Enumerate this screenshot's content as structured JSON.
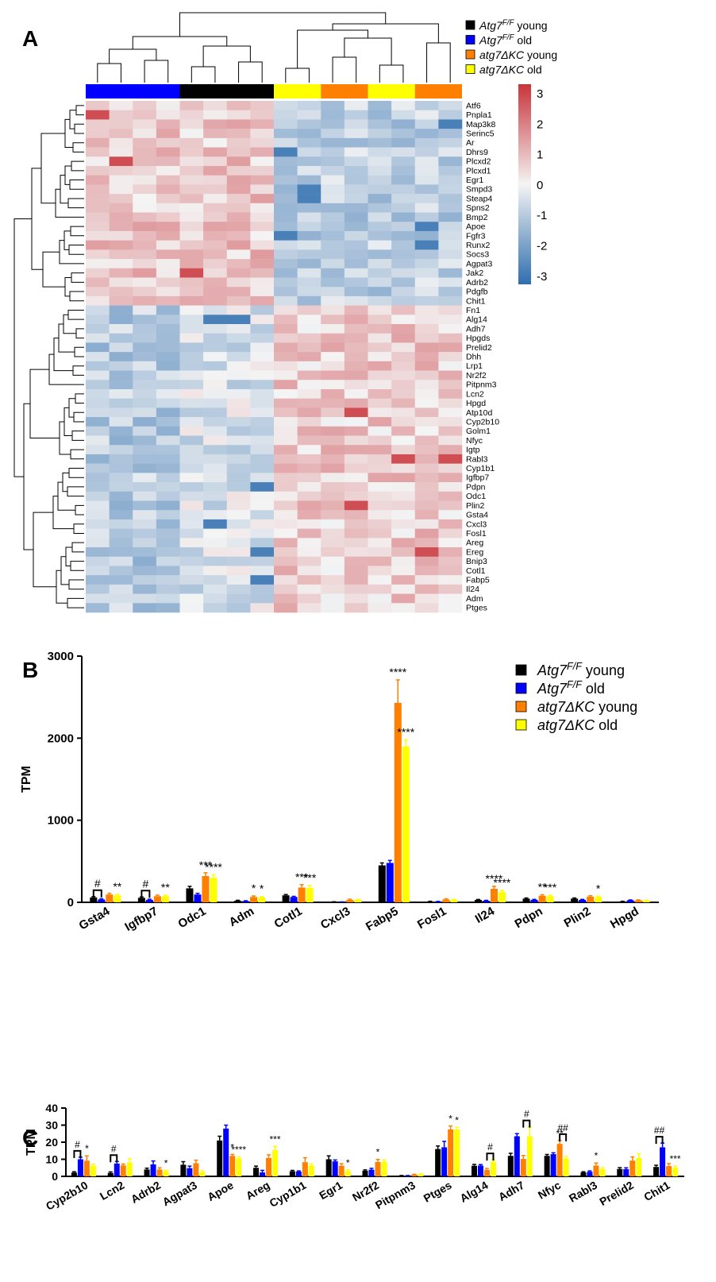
{
  "panels": {
    "a": "A",
    "b": "B",
    "c": "C"
  },
  "heatmap": {
    "type": "heatmap",
    "groups": [
      {
        "name": "Atg7 F/F old",
        "color": "#0000ff",
        "columns": 4
      },
      {
        "name": "Atg7 F/F young",
        "color": "#000000",
        "columns": 4
      },
      {
        "name": "atg7ΔKC old",
        "color": "#ffff00",
        "columns": 2
      },
      {
        "name": "atg7ΔKC young",
        "color": "#ff8000",
        "columns": 2
      },
      {
        "name": "atg7ΔKC old",
        "color": "#ffff00",
        "columns": 2
      },
      {
        "name": "atg7ΔKC young",
        "color": "#ff8000",
        "columns": 2
      }
    ],
    "genes": [
      "Atf6",
      "Pnpla1",
      "Map3k8",
      "Serinc5",
      "Ar",
      "Dhrs9",
      "Plcxd2",
      "Plcxd1",
      "Egr1",
      "Smpd3",
      "Steap4",
      "Spns2",
      "Bmp2",
      "Apoe",
      "Fgfr3",
      "Runx2",
      "Socs3",
      "Agpat3",
      "Jak2",
      "Adrb2",
      "Pdgfb",
      "Chit1",
      "Fn1",
      "Alg14",
      "Adh7",
      "Hpgds",
      "Prelid2",
      "Dhh",
      "Lrp1",
      "Nr2f2",
      "Pitpnm3",
      "Lcn2",
      "Hpgd",
      "Atp10d",
      "Cyp2b10",
      "Golm1",
      "Nfyc",
      "Igtp",
      "Rabl3",
      "Cyp1b1",
      "Igfbp7",
      "Pdpn",
      "Odc1",
      "Plin2",
      "Gsta4",
      "Cxcl3",
      "Fosl1",
      "Areg",
      "Ereg",
      "Bnip3",
      "Cotl1",
      "Fabp5",
      "Il24",
      "Adm",
      "Ptges"
    ],
    "colorbar": {
      "min": -3,
      "max": 3,
      "ticks": [
        "3",
        "2",
        "1",
        "0",
        "-1",
        "-2",
        "-3"
      ],
      "high": "#c8343b",
      "mid": "#f4f4f4",
      "low": "#2f6eaf"
    },
    "legend": [
      {
        "base": "Atg7",
        "sup": "F/F",
        "suffix": " young",
        "color": "#000000"
      },
      {
        "base": "Atg7",
        "sup": "F/F",
        "suffix": " old",
        "color": "#0000ff"
      },
      {
        "base": "atg7ΔKC",
        "sup": "",
        "suffix": " young",
        "color": "#ff8000"
      },
      {
        "base": "atg7ΔKC",
        "sup": "",
        "suffix": " old",
        "color": "#ffff00"
      }
    ]
  },
  "chart_data": [
    {
      "type": "bar",
      "ylabel": "TPM",
      "ylim": [
        0,
        3000
      ],
      "yticks": [
        "0",
        "1000",
        "2000",
        "3000"
      ],
      "categories": [
        "Gsta4",
        "Igfbp7",
        "Odc1",
        "Adm",
        "Cotl1",
        "Cxcl3",
        "Fabp5",
        "Fosl1",
        "Il24",
        "Pdpn",
        "Plin2",
        "Hpgd"
      ],
      "series": [
        {
          "name": "Atg7F/F young",
          "color": "#000000",
          "values": [
            60,
            55,
            170,
            20,
            85,
            5,
            450,
            10,
            30,
            45,
            45,
            10
          ],
          "errors": [
            10,
            10,
            25,
            5,
            10,
            2,
            30,
            3,
            5,
            8,
            8,
            3
          ]
        },
        {
          "name": "Atg7F/F old",
          "color": "#0000ff",
          "values": [
            35,
            30,
            95,
            15,
            65,
            3,
            480,
            8,
            20,
            30,
            30,
            25
          ],
          "errors": [
            8,
            8,
            15,
            4,
            8,
            2,
            30,
            3,
            4,
            6,
            6,
            4
          ]
        },
        {
          "name": "atg7ΔKC young",
          "color": "#ff8000",
          "values": [
            95,
            75,
            320,
            65,
            180,
            30,
            2430,
            35,
            165,
            80,
            70,
            25
          ],
          "errors": [
            15,
            12,
            40,
            12,
            35,
            8,
            280,
            8,
            30,
            12,
            10,
            5
          ]
        },
        {
          "name": "atg7ΔKC old",
          "color": "#ffff00",
          "values": [
            85,
            75,
            300,
            60,
            175,
            30,
            1900,
            30,
            125,
            75,
            65,
            20
          ],
          "errors": [
            12,
            12,
            35,
            12,
            30,
            6,
            80,
            6,
            20,
            10,
            10,
            4
          ]
        }
      ],
      "annotations": [
        {
          "category": 0,
          "series": 0,
          "text": "#",
          "bracket": [
            0,
            1
          ]
        },
        {
          "category": 0,
          "series": 3,
          "text": "**"
        },
        {
          "category": 1,
          "series": 0,
          "text": "#",
          "bracket": [
            0,
            1
          ]
        },
        {
          "category": 1,
          "series": 3,
          "text": "**"
        },
        {
          "category": 2,
          "series": 2,
          "text": "***"
        },
        {
          "category": 2,
          "series": 3,
          "text": "****"
        },
        {
          "category": 3,
          "series": 2,
          "text": "*"
        },
        {
          "category": 3,
          "series": 3,
          "text": "*"
        },
        {
          "category": 4,
          "series": 2,
          "text": "***"
        },
        {
          "category": 4,
          "series": 3,
          "text": "***"
        },
        {
          "category": 6,
          "series": 2,
          "text": "****"
        },
        {
          "category": 6,
          "series": 3,
          "text": "****"
        },
        {
          "category": 8,
          "series": 2,
          "text": "****"
        },
        {
          "category": 8,
          "series": 3,
          "text": "****"
        },
        {
          "category": 9,
          "series": 2,
          "text": "**"
        },
        {
          "category": 9,
          "series": 3,
          "text": "***"
        },
        {
          "category": 10,
          "series": 3,
          "text": "*"
        }
      ],
      "legend": [
        {
          "base": "Atg7",
          "sup": "F/F",
          "suffix": "  young",
          "color": "#000000"
        },
        {
          "base": "Atg7",
          "sup": "F/F",
          "suffix": " old",
          "color": "#0000ff"
        },
        {
          "base": "atg7ΔKC",
          "sup": "",
          "suffix": " young",
          "color": "#ff8000"
        },
        {
          "base": "atg7ΔKC",
          "sup": "",
          "suffix": " old",
          "color": "#ffff00"
        }
      ]
    },
    {
      "type": "bar",
      "ylabel": "TPM",
      "ylim": [
        0,
        40
      ],
      "yticks": [
        "0",
        "10",
        "20",
        "30",
        "40"
      ],
      "categories": [
        "Cyp2b10",
        "Lcn2",
        "Adrb2",
        "Agpat3",
        "Apoe",
        "Areg",
        "Cyp1b1",
        "Egr1",
        "Nr2f2",
        "Pitpnm3",
        "Ptges",
        "Alg14",
        "Adh7",
        "Nfyc",
        "Rabl3",
        "Prelid2",
        "Chit1"
      ],
      "series": [
        {
          "name": "Atg7F/F young",
          "color": "#000000",
          "values": [
            2.2,
            2.0,
            4.0,
            6.8,
            21,
            5.0,
            3.0,
            10,
            3.3,
            0.4,
            16,
            6.2,
            12,
            12,
            2.3,
            4.3,
            5.5
          ],
          "errors": [
            0.5,
            0.6,
            0.8,
            1.8,
            2.5,
            1.0,
            0.5,
            2.0,
            0.5,
            0.1,
            1.8,
            0.8,
            1.5,
            0.8,
            0.4,
            0.8,
            1.0
          ]
        },
        {
          "name": "Atg7F/F old",
          "color": "#0000ff",
          "values": [
            10,
            7.5,
            7.0,
            4.8,
            28,
            2.3,
            2.8,
            8.8,
            3.9,
            0.4,
            17,
            6.3,
            23.5,
            13,
            2.7,
            4.2,
            17
          ],
          "errors": [
            1.2,
            1.2,
            2.0,
            1.2,
            2.0,
            1.2,
            0.4,
            0.8,
            0.8,
            0.1,
            3.5,
            0.6,
            1.5,
            0.8,
            0.5,
            0.8,
            2.5
          ]
        },
        {
          "name": "atg7ΔKC young",
          "color": "#ff8000",
          "values": [
            9.2,
            6.4,
            4.0,
            7.7,
            12,
            10.8,
            8.3,
            6.2,
            8.4,
            1.0,
            27.5,
            3.8,
            10.2,
            19,
            6.3,
            9.2,
            6.0
          ],
          "errors": [
            2.8,
            0.8,
            1.0,
            1.8,
            0.8,
            1.8,
            2.6,
            1.2,
            1.5,
            0.2,
            2.0,
            0.8,
            2.0,
            2.0,
            1.5,
            2.2,
            1.5
          ]
        },
        {
          "name": "atg7ΔKC old",
          "color": "#ffff00",
          "values": [
            6.2,
            8.2,
            3.0,
            2.5,
            10.5,
            15.5,
            6.3,
            3.0,
            8.5,
            1.3,
            27.5,
            8.5,
            23.5,
            10.5,
            4.3,
            10.8,
            5.0
          ],
          "errors": [
            0.8,
            2.2,
            0.6,
            0.8,
            1.0,
            2.0,
            1.0,
            0.8,
            1.2,
            0.2,
            1.2,
            1.2,
            5.5,
            1.2,
            0.8,
            2.5,
            1.0
          ]
        }
      ],
      "annotations": [
        {
          "category": 0,
          "series": 0,
          "text": "#",
          "bracket": [
            0,
            1
          ]
        },
        {
          "category": 0,
          "series": 2,
          "text": "*"
        },
        {
          "category": 1,
          "series": 0,
          "text": "#",
          "bracket": [
            0,
            1
          ]
        },
        {
          "category": 2,
          "series": 3,
          "text": "*"
        },
        {
          "category": 4,
          "series": 2,
          "text": "*"
        },
        {
          "category": 4,
          "series": 3,
          "text": "****"
        },
        {
          "category": 5,
          "series": 3,
          "text": "***"
        },
        {
          "category": 7,
          "series": 3,
          "text": "*"
        },
        {
          "category": 8,
          "series": 2,
          "text": "*"
        },
        {
          "category": 10,
          "series": 2,
          "text": "*"
        },
        {
          "category": 10,
          "series": 3,
          "text": "*"
        },
        {
          "category": 11,
          "series": 2,
          "text": "#",
          "bracket": [
            2,
            3
          ]
        },
        {
          "category": 12,
          "series": 2,
          "text": "#",
          "bracket": [
            2,
            3
          ]
        },
        {
          "category": 13,
          "series": 2,
          "text": "##",
          "bracket": [
            2,
            3
          ]
        },
        {
          "category": 13,
          "series": 2,
          "text": "**"
        },
        {
          "category": 14,
          "series": 2,
          "text": "*"
        },
        {
          "category": 16,
          "series": 0,
          "text": "##",
          "bracket": [
            0,
            1
          ]
        },
        {
          "category": 16,
          "series": 3,
          "text": "***"
        }
      ]
    }
  ]
}
